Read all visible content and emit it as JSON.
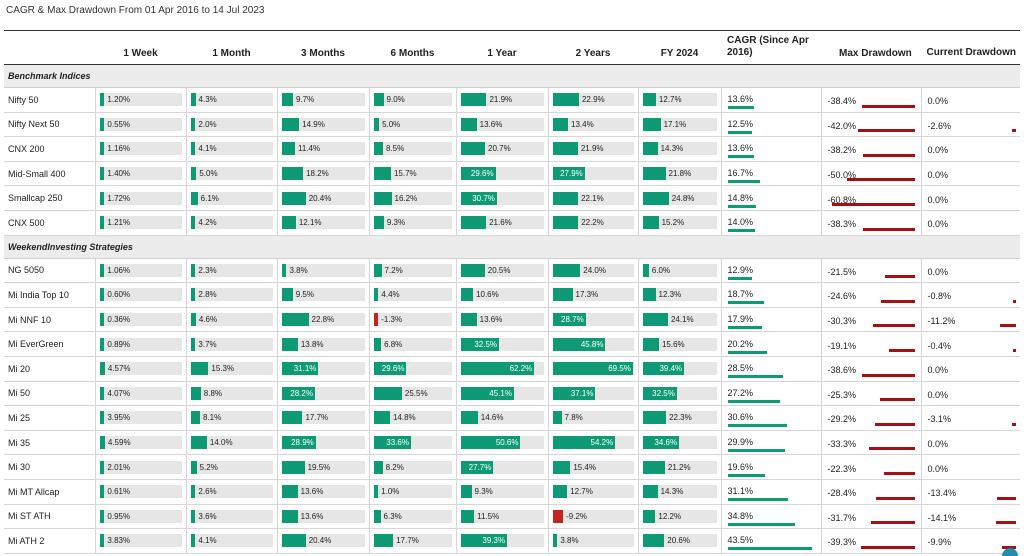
{
  "title": "CAGR & Max Drawdown From 01 Apr 2016 to 14 Jul 2023",
  "columns": {
    "week1": "1 Week",
    "month1": "1 Month",
    "month3": "3 Months",
    "month6": "6 Months",
    "year1": "1 Year",
    "year2": "2 Years",
    "fy": "FY 2024",
    "cagr": "CAGR (Since Apr 2016)",
    "mdd": "Max Drawdown",
    "cdd": "Current Drawdown"
  },
  "colors": {
    "positive": "#0e9a74",
    "negative": "#c0251f",
    "drawdown": "#a31115",
    "track": "#e6e6e6"
  },
  "sections": [
    {
      "label": "Benchmark Indices",
      "rows": [
        {
          "name": "Nifty 50",
          "r": [
            1.2,
            4.3,
            9.7,
            9.0,
            21.9,
            22.9,
            12.7
          ],
          "rl": [
            "1.20%",
            "4.3%",
            "9.7%",
            "9.0%",
            "21.9%",
            "22.9%",
            "12.7%"
          ],
          "cagr": 13.6,
          "cagr_l": "13.6%",
          "mdd": -38.4,
          "mdd_l": "-38.4%",
          "cdd": 0.0,
          "cdd_l": "0.0%"
        },
        {
          "name": "Nifty Next 50",
          "r": [
            0.55,
            2.0,
            14.9,
            5.0,
            13.6,
            13.4,
            17.1
          ],
          "rl": [
            "0.55%",
            "2.0%",
            "14.9%",
            "5.0%",
            "13.6%",
            "13.4%",
            "17.1%"
          ],
          "cagr": 12.5,
          "cagr_l": "12.5%",
          "mdd": -42.0,
          "mdd_l": "-42.0%",
          "cdd": -2.6,
          "cdd_l": "-2.6%"
        },
        {
          "name": "CNX 200",
          "r": [
            1.16,
            4.1,
            11.4,
            8.5,
            20.7,
            21.9,
            14.3
          ],
          "rl": [
            "1.16%",
            "4.1%",
            "11.4%",
            "8.5%",
            "20.7%",
            "21.9%",
            "14.3%"
          ],
          "cagr": 13.6,
          "cagr_l": "13.6%",
          "mdd": -38.2,
          "mdd_l": "-38.2%",
          "cdd": 0.0,
          "cdd_l": "0.0%"
        },
        {
          "name": "Mid-Small 400",
          "r": [
            1.4,
            5.0,
            18.2,
            15.7,
            29.6,
            27.9,
            21.8
          ],
          "rl": [
            "1.40%",
            "5.0%",
            "18.2%",
            "15.7%",
            "29.6%",
            "27.9%",
            "21.8%"
          ],
          "cagr": 16.7,
          "cagr_l": "16.7%",
          "mdd": -50.0,
          "mdd_l": "-50.0%",
          "cdd": 0.0,
          "cdd_l": "0.0%"
        },
        {
          "name": "Smallcap 250",
          "r": [
            1.72,
            6.1,
            20.4,
            16.2,
            30.7,
            22.1,
            24.8
          ],
          "rl": [
            "1.72%",
            "6.1%",
            "20.4%",
            "16.2%",
            "30.7%",
            "22.1%",
            "24.8%"
          ],
          "cagr": 14.8,
          "cagr_l": "14.8%",
          "mdd": -60.8,
          "mdd_l": "-60.8%",
          "cdd": 0.0,
          "cdd_l": "0.0%"
        },
        {
          "name": "CNX 500",
          "r": [
            1.21,
            4.2,
            12.1,
            9.3,
            21.6,
            22.2,
            15.2
          ],
          "rl": [
            "1.21%",
            "4.2%",
            "12.1%",
            "9.3%",
            "21.6%",
            "22.2%",
            "15.2%"
          ],
          "cagr": 14.0,
          "cagr_l": "14.0%",
          "mdd": -38.3,
          "mdd_l": "-38.3%",
          "cdd": 0.0,
          "cdd_l": "0.0%"
        }
      ]
    },
    {
      "label": "WeekendInvesting Strategies",
      "rows": [
        {
          "name": "NG 5050",
          "r": [
            1.06,
            2.3,
            3.8,
            7.2,
            20.5,
            24.0,
            6.0
          ],
          "rl": [
            "1.06%",
            "2.3%",
            "3.8%",
            "7.2%",
            "20.5%",
            "24.0%",
            "6.0%"
          ],
          "cagr": 12.9,
          "cagr_l": "12.9%",
          "mdd": -21.5,
          "mdd_l": "-21.5%",
          "cdd": 0.0,
          "cdd_l": "0.0%"
        },
        {
          "name": "Mi India Top 10",
          "r": [
            0.6,
            2.8,
            9.5,
            4.4,
            10.6,
            17.3,
            12.3
          ],
          "rl": [
            "0.60%",
            "2.8%",
            "9.5%",
            "4.4%",
            "10.6%",
            "17.3%",
            "12.3%"
          ],
          "cagr": 18.7,
          "cagr_l": "18.7%",
          "mdd": -24.6,
          "mdd_l": "-24.6%",
          "cdd": -0.8,
          "cdd_l": "-0.8%"
        },
        {
          "name": "Mi NNF 10",
          "r": [
            0.36,
            4.6,
            22.8,
            -1.3,
            13.6,
            28.7,
            24.1
          ],
          "rl": [
            "0.36%",
            "4.6%",
            "22.8%",
            "-1.3%",
            "13.6%",
            "28.7%",
            "24.1%"
          ],
          "cagr": 17.9,
          "cagr_l": "17.9%",
          "mdd": -30.3,
          "mdd_l": "-30.3%",
          "cdd": -11.2,
          "cdd_l": "-11.2%"
        },
        {
          "name": "Mi EverGreen",
          "r": [
            0.89,
            3.7,
            13.8,
            6.8,
            32.5,
            45.8,
            15.6
          ],
          "rl": [
            "0.89%",
            "3.7%",
            "13.8%",
            "6.8%",
            "32.5%",
            "45.8%",
            "15.6%"
          ],
          "cagr": 20.2,
          "cagr_l": "20.2%",
          "mdd": -19.1,
          "mdd_l": "-19.1%",
          "cdd": -0.4,
          "cdd_l": "-0.4%"
        },
        {
          "name": "Mi 20",
          "r": [
            4.57,
            15.3,
            31.1,
            29.6,
            62.2,
            69.5,
            39.4
          ],
          "rl": [
            "4.57%",
            "15.3%",
            "31.1%",
            "29.6%",
            "62.2%",
            "69.5%",
            "39.4%"
          ],
          "cagr": 28.5,
          "cagr_l": "28.5%",
          "mdd": -38.6,
          "mdd_l": "-38.6%",
          "cdd": 0.0,
          "cdd_l": "0.0%"
        },
        {
          "name": "Mi 50",
          "r": [
            4.07,
            8.8,
            28.2,
            25.5,
            45.1,
            37.1,
            32.5
          ],
          "rl": [
            "4.07%",
            "8.8%",
            "28.2%",
            "25.5%",
            "45.1%",
            "37.1%",
            "32.5%"
          ],
          "cagr": 27.2,
          "cagr_l": "27.2%",
          "mdd": -25.3,
          "mdd_l": "-25.3%",
          "cdd": 0.0,
          "cdd_l": "0.0%"
        },
        {
          "name": "Mi 25",
          "r": [
            3.95,
            8.1,
            17.7,
            14.8,
            14.6,
            7.8,
            22.3
          ],
          "rl": [
            "3.95%",
            "8.1%",
            "17.7%",
            "14.8%",
            "14.6%",
            "7.8%",
            "22.3%"
          ],
          "cagr": 30.6,
          "cagr_l": "30.6%",
          "mdd": -29.2,
          "mdd_l": "-29.2%",
          "cdd": -3.1,
          "cdd_l": "-3.1%"
        },
        {
          "name": "Mi 35",
          "r": [
            4.59,
            14.0,
            28.9,
            33.6,
            50.6,
            54.2,
            34.6
          ],
          "rl": [
            "4.59%",
            "14.0%",
            "28.9%",
            "33.6%",
            "50.6%",
            "54.2%",
            "34.6%"
          ],
          "cagr": 29.9,
          "cagr_l": "29.9%",
          "mdd": -33.3,
          "mdd_l": "-33.3%",
          "cdd": 0.0,
          "cdd_l": "0.0%"
        },
        {
          "name": "Mi 30",
          "r": [
            2.01,
            5.2,
            19.5,
            8.2,
            27.7,
            15.4,
            21.2
          ],
          "rl": [
            "2.01%",
            "5.2%",
            "19.5%",
            "8.2%",
            "27.7%",
            "15.4%",
            "21.2%"
          ],
          "cagr": 19.6,
          "cagr_l": "19.6%",
          "mdd": -22.3,
          "mdd_l": "-22.3%",
          "cdd": 0.0,
          "cdd_l": "0.0%"
        },
        {
          "name": "Mi MT Allcap",
          "r": [
            0.61,
            2.6,
            13.6,
            1.0,
            9.3,
            12.7,
            14.3
          ],
          "rl": [
            "0.61%",
            "2.6%",
            "13.6%",
            "1.0%",
            "9.3%",
            "12.7%",
            "14.3%"
          ],
          "cagr": 31.1,
          "cagr_l": "31.1%",
          "mdd": -28.4,
          "mdd_l": "-28.4%",
          "cdd": -13.4,
          "cdd_l": "-13.4%"
        },
        {
          "name": "Mi ST ATH",
          "r": [
            0.95,
            3.6,
            13.6,
            6.3,
            11.5,
            -9.2,
            12.2
          ],
          "rl": [
            "0.95%",
            "3.6%",
            "13.6%",
            "6.3%",
            "11.5%",
            "-9.2%",
            "12.2%"
          ],
          "cagr": 34.8,
          "cagr_l": "34.8%",
          "mdd": -31.7,
          "mdd_l": "-31.7%",
          "cdd": -14.1,
          "cdd_l": "-14.1%"
        },
        {
          "name": "Mi ATH 2",
          "r": [
            3.83,
            4.1,
            20.4,
            17.7,
            39.3,
            3.8,
            20.6
          ],
          "rl": [
            "3.83%",
            "4.1%",
            "20.4%",
            "17.7%",
            "39.3%",
            "3.8%",
            "20.6%"
          ],
          "cagr": 43.5,
          "cagr_l": "43.5%",
          "mdd": -39.3,
          "mdd_l": "-39.3%",
          "cdd": -9.9,
          "cdd_l": "-9.9%"
        }
      ]
    }
  ]
}
